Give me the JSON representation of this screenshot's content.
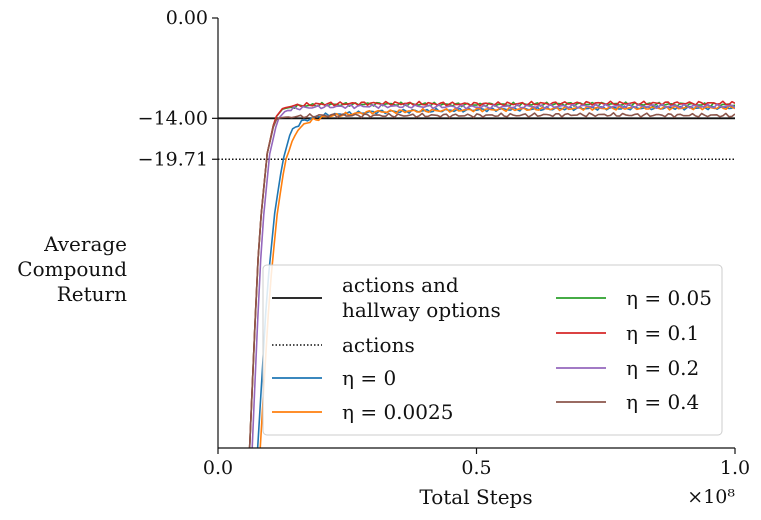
{
  "chart_data": {
    "type": "line",
    "xlabel": "Total Steps",
    "x_multiplier": "×10⁸",
    "ylabel_lines": [
      "Average",
      "Compound",
      "Return"
    ],
    "xlim": [
      0,
      1.0
    ],
    "ylim": [
      -60.0,
      0.0
    ],
    "x_ticks": [
      {
        "value": 0.0,
        "label": "0.0"
      },
      {
        "value": 0.5,
        "label": "0.5"
      },
      {
        "value": 1.0,
        "label": "1.0"
      }
    ],
    "y_ticks": [
      {
        "value": 0.0,
        "label": "0.00"
      },
      {
        "value": -14.0,
        "label": "−14.00"
      },
      {
        "value": -19.71,
        "label": "−19.71"
      }
    ],
    "reference_lines": [
      {
        "name_lines": [
          "actions and",
          "hallway options"
        ],
        "value": -14.0,
        "style": "solid",
        "color": "#111111"
      },
      {
        "name_lines": [
          "actions"
        ],
        "value": -19.71,
        "style": "dotted",
        "color": "#111111"
      }
    ],
    "series": [
      {
        "name": "η = 0",
        "color": "#1f77b4",
        "x": [
          0.075,
          0.085,
          0.095,
          0.11,
          0.125,
          0.14,
          0.16,
          0.2,
          0.3,
          0.5,
          0.7,
          1.0
        ],
        "values": [
          -62,
          -50,
          -38,
          -27,
          -20,
          -16,
          -14.5,
          -13.6,
          -13.1,
          -12.8,
          -12.6,
          -12.5
        ]
      },
      {
        "name": "η = 0.0025",
        "color": "#ff7f0e",
        "x": [
          0.08,
          0.09,
          0.1,
          0.115,
          0.13,
          0.15,
          0.17,
          0.21,
          0.3,
          0.5,
          0.7,
          1.0
        ],
        "values": [
          -62,
          -50,
          -38,
          -27,
          -20,
          -16,
          -14.6,
          -13.7,
          -13.1,
          -12.8,
          -12.6,
          -12.5
        ]
      },
      {
        "name": "η = 0.05",
        "color": "#2ca02c",
        "x": [
          0.06,
          0.07,
          0.08,
          0.095,
          0.11,
          0.125,
          0.15,
          0.2,
          0.3,
          0.5,
          0.7,
          1.0
        ],
        "values": [
          -62,
          -45,
          -30,
          -19,
          -14,
          -12.7,
          -12.3,
          -12.1,
          -12.0,
          -12.1,
          -12.0,
          -12.1
        ]
      },
      {
        "name": "η = 0.1",
        "color": "#d62728",
        "x": [
          0.06,
          0.07,
          0.08,
          0.095,
          0.11,
          0.125,
          0.15,
          0.2,
          0.3,
          0.5,
          0.7,
          1.0
        ],
        "values": [
          -62,
          -45,
          -30,
          -19,
          -14,
          -12.6,
          -12.2,
          -12.0,
          -11.9,
          -12.0,
          -11.9,
          -11.9
        ]
      },
      {
        "name": "η = 0.2",
        "color": "#9467bd",
        "x": [
          0.065,
          0.075,
          0.085,
          0.1,
          0.115,
          0.13,
          0.15,
          0.2,
          0.3,
          0.5,
          0.7,
          1.0
        ],
        "values": [
          -62,
          -45,
          -30,
          -19,
          -14.2,
          -13.0,
          -12.6,
          -12.4,
          -12.3,
          -12.4,
          -12.3,
          -12.3
        ]
      },
      {
        "name": "η = 0.4",
        "color": "#8c564b",
        "x": [
          0.06,
          0.07,
          0.08,
          0.095,
          0.11,
          0.12,
          0.14,
          0.2,
          0.3,
          0.5,
          0.7,
          1.0
        ],
        "values": [
          -62,
          -45,
          -30,
          -19,
          -14.3,
          -13.9,
          -13.8,
          -13.6,
          -13.6,
          -13.6,
          -13.5,
          -13.6
        ]
      }
    ],
    "grid": false,
    "legend_placement": "lower-right"
  }
}
